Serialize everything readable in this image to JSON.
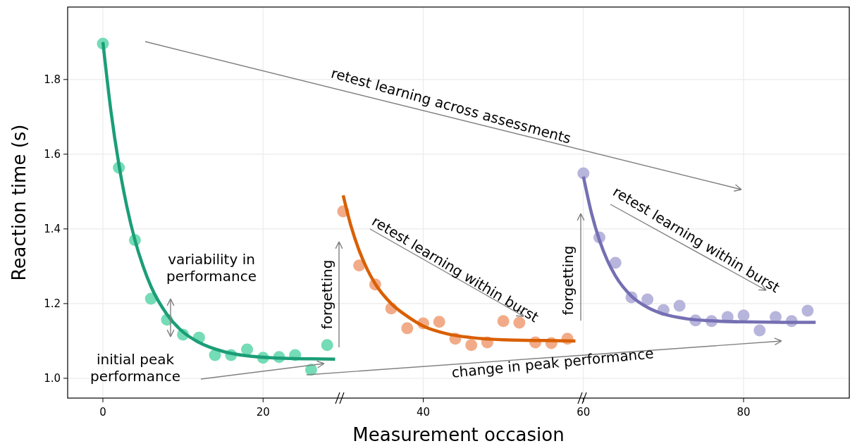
{
  "chart_data": {
    "type": "scatter",
    "xlabel": "Measurement occasion",
    "ylabel": "Reaction time (s)",
    "xlim": [
      -4.4,
      93.2
    ],
    "ylim": [
      0.947,
      1.994
    ],
    "xticks": [
      0,
      20,
      40,
      60,
      80
    ],
    "yticks": [
      {
        "value": 1.0,
        "label": "1.0"
      },
      {
        "value": 1.2,
        "label": "1.2"
      },
      {
        "value": 1.4,
        "label": "1.4"
      },
      {
        "value": 1.6,
        "label": "1.6"
      },
      {
        "value": 1.8,
        "label": "1.8"
      }
    ],
    "grid": true,
    "series": [
      {
        "marker": "circle",
        "color": "#74dcb6",
        "x": [
          0,
          2,
          4,
          6,
          8,
          10,
          12,
          14,
          16,
          18,
          20,
          22,
          24,
          26,
          28
        ],
        "values": [
          1.896,
          1.564,
          1.37,
          1.213,
          1.157,
          1.117,
          1.109,
          1.062,
          1.062,
          1.077,
          1.055,
          1.057,
          1.062,
          1.023,
          1.089
        ]
      },
      {
        "marker": "circle",
        "color": "#f2ab88",
        "x": [
          30,
          32,
          34,
          36,
          38,
          40,
          42,
          44,
          46,
          48,
          50,
          52,
          54,
          56,
          58
        ],
        "values": [
          1.447,
          1.302,
          1.251,
          1.187,
          1.134,
          1.147,
          1.151,
          1.106,
          1.089,
          1.096,
          1.153,
          1.149,
          1.096,
          1.094,
          1.106
        ]
      },
      {
        "marker": "circle",
        "color": "#b8b5dc",
        "x": [
          60,
          62,
          64,
          66,
          68,
          70,
          72,
          74,
          76,
          78,
          80,
          82,
          84,
          86,
          88
        ],
        "values": [
          1.549,
          1.377,
          1.309,
          1.217,
          1.211,
          1.183,
          1.194,
          1.155,
          1.153,
          1.164,
          1.168,
          1.128,
          1.164,
          1.153,
          1.181
        ]
      },
      {
        "type": "line",
        "marker": "none",
        "color": "#1b9e77",
        "x": [
          0,
          1,
          2,
          3,
          4,
          5,
          6,
          8,
          10,
          12,
          15,
          18,
          22,
          26,
          29
        ],
        "values": [
          1.9,
          1.716,
          1.572,
          1.459,
          1.37,
          1.301,
          1.246,
          1.171,
          1.124,
          1.096,
          1.072,
          1.06,
          1.054,
          1.052,
          1.051
        ]
      },
      {
        "type": "line",
        "marker": "none",
        "color": "#d95f02",
        "x": [
          30,
          31,
          32,
          33,
          34,
          36,
          38,
          40,
          43,
          46,
          50,
          55,
          59
        ],
        "values": [
          1.49,
          1.406,
          1.342,
          1.292,
          1.253,
          1.2,
          1.166,
          1.14,
          1.119,
          1.109,
          1.103,
          1.101,
          1.1
        ]
      },
      {
        "type": "line",
        "marker": "none",
        "color": "#7570b3",
        "x": [
          60,
          61,
          62,
          63,
          64,
          66,
          68,
          70,
          73,
          76,
          80,
          85,
          89
        ],
        "values": [
          1.54,
          1.443,
          1.37,
          1.315,
          1.274,
          1.22,
          1.19,
          1.172,
          1.159,
          1.154,
          1.151,
          1.15,
          1.15
        ]
      }
    ],
    "annotations": [
      "retest learning across assessments",
      "variability in\nperformance",
      "initial peak\nperformance",
      "forgetting",
      "retest learning within burst",
      "forgetting",
      "retest learning within burst",
      "change in peak performance"
    ]
  }
}
